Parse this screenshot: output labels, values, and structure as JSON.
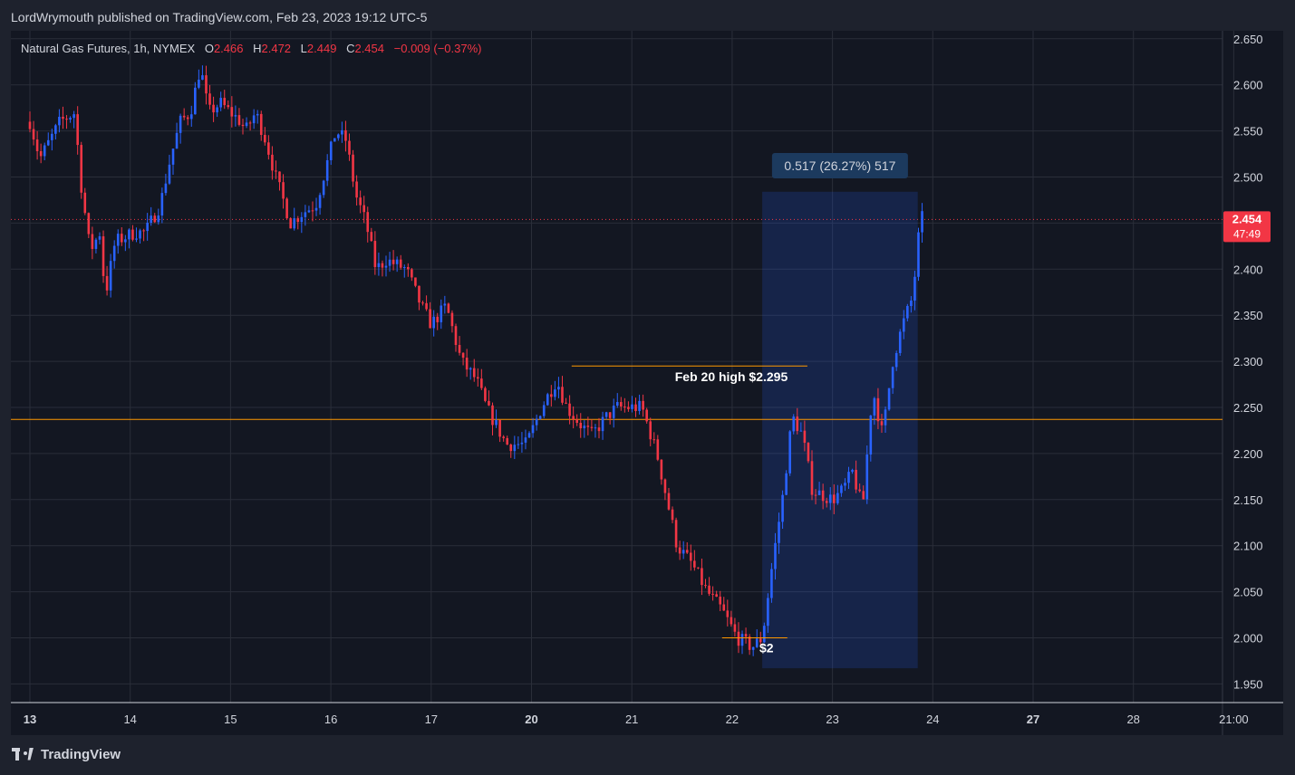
{
  "header": {
    "published": "LordWrymouth published on TradingView.com, Feb 23, 2023 19:12 UTC-5"
  },
  "legend": {
    "symbol": "Natural Gas Futures, 1h, NYMEX",
    "open_label": "O",
    "open": "2.466",
    "high_label": "H",
    "high": "2.472",
    "low_label": "L",
    "low": "2.449",
    "close_label": "C",
    "close": "2.454",
    "change": "−0.009 (−0.37%)"
  },
  "price_badge": {
    "price": "2.454",
    "countdown": "47:49"
  },
  "footer": {
    "brand": "TradingView"
  },
  "colors": {
    "up": "#2962ff",
    "down": "#f23645",
    "orange": "#ff9800",
    "background": "#131722"
  },
  "chart_data": {
    "type": "candlestick",
    "timeframe": "1h",
    "y_ticks": [
      "1.950",
      "2.000",
      "2.050",
      "2.100",
      "2.150",
      "2.200",
      "2.250",
      "2.300",
      "2.350",
      "2.400",
      "2.450",
      "2.500",
      "2.550",
      "2.600",
      "2.650"
    ],
    "ylim": [
      1.93,
      2.68
    ],
    "x_ticks": [
      {
        "label": "13",
        "bold": true,
        "pos": 0
      },
      {
        "label": "14",
        "bold": false,
        "pos": 1
      },
      {
        "label": "15",
        "bold": false,
        "pos": 2
      },
      {
        "label": "16",
        "bold": false,
        "pos": 3
      },
      {
        "label": "17",
        "bold": false,
        "pos": 4
      },
      {
        "label": "20",
        "bold": true,
        "pos": 5
      },
      {
        "label": "21",
        "bold": false,
        "pos": 6
      },
      {
        "label": "22",
        "bold": false,
        "pos": 7
      },
      {
        "label": "23",
        "bold": false,
        "pos": 8
      },
      {
        "label": "24",
        "bold": false,
        "pos": 9
      },
      {
        "label": "27",
        "bold": true,
        "pos": 10
      },
      {
        "label": "28",
        "bold": false,
        "pos": 11
      },
      {
        "label": "21:00",
        "bold": false,
        "pos": 12
      }
    ],
    "close_path": [
      [
        0,
        2.56
      ],
      [
        0.1,
        2.52
      ],
      [
        0.3,
        2.56
      ],
      [
        0.45,
        2.57
      ],
      [
        0.5,
        2.5
      ],
      [
        0.6,
        2.42
      ],
      [
        0.7,
        2.44
      ],
      [
        0.75,
        2.37
      ],
      [
        0.85,
        2.43
      ],
      [
        1.05,
        2.44
      ],
      [
        1.15,
        2.44
      ],
      [
        1.3,
        2.47
      ],
      [
        1.4,
        2.52
      ],
      [
        1.5,
        2.56
      ],
      [
        1.6,
        2.57
      ],
      [
        1.7,
        2.62
      ],
      [
        1.78,
        2.57
      ],
      [
        1.9,
        2.58
      ],
      [
        2.1,
        2.56
      ],
      [
        2.15,
        2.55
      ],
      [
        2.25,
        2.57
      ],
      [
        2.35,
        2.54
      ],
      [
        2.45,
        2.5
      ],
      [
        2.6,
        2.45
      ],
      [
        2.7,
        2.46
      ],
      [
        2.85,
        2.47
      ],
      [
        2.95,
        2.51
      ],
      [
        3.05,
        2.55
      ],
      [
        3.15,
        2.54
      ],
      [
        3.25,
        2.48
      ],
      [
        3.35,
        2.45
      ],
      [
        3.45,
        2.4
      ],
      [
        3.55,
        2.41
      ],
      [
        3.75,
        2.4
      ],
      [
        3.9,
        2.36
      ],
      [
        4.0,
        2.34
      ],
      [
        4.15,
        2.36
      ],
      [
        4.3,
        2.3
      ],
      [
        4.45,
        2.28
      ],
      [
        4.55,
        2.25
      ],
      [
        4.75,
        2.21
      ],
      [
        4.95,
        2.21
      ],
      [
        5.1,
        2.25
      ],
      [
        5.25,
        2.28
      ],
      [
        5.35,
        2.25
      ],
      [
        5.5,
        2.23
      ],
      [
        5.6,
        2.22
      ],
      [
        5.75,
        2.24
      ],
      [
        5.85,
        2.25
      ],
      [
        6.1,
        2.25
      ],
      [
        6.25,
        2.2
      ],
      [
        6.35,
        2.15
      ],
      [
        6.45,
        2.1
      ],
      [
        6.6,
        2.08
      ],
      [
        6.75,
        2.05
      ],
      [
        6.9,
        2.03
      ],
      [
        7.05,
        2.0
      ],
      [
        7.2,
        1.99
      ],
      [
        7.3,
        2.0
      ],
      [
        7.4,
        2.08
      ],
      [
        7.5,
        2.15
      ],
      [
        7.6,
        2.24
      ],
      [
        7.7,
        2.22
      ],
      [
        7.8,
        2.16
      ],
      [
        8.0,
        2.15
      ],
      [
        8.1,
        2.16
      ],
      [
        8.2,
        2.18
      ],
      [
        8.3,
        2.14
      ],
      [
        8.4,
        2.27
      ],
      [
        8.5,
        2.22
      ],
      [
        8.6,
        2.3
      ],
      [
        8.7,
        2.34
      ],
      [
        8.8,
        2.37
      ],
      [
        8.88,
        2.46
      ],
      [
        8.91,
        2.45
      ]
    ],
    "annotations": [
      {
        "type": "hline",
        "price": 2.237,
        "label": ""
      },
      {
        "type": "segment",
        "price": 2.295,
        "from": 5.4,
        "to": 7.75,
        "label": "Feb 20 high $2.295"
      },
      {
        "type": "segment",
        "price": 2.0,
        "from": 6.9,
        "to": 7.55,
        "label": "$2"
      },
      {
        "type": "range",
        "from": 7.3,
        "to": 8.85,
        "low": 1.967,
        "high": 2.484,
        "label": "0.517 (26.27%) 517"
      },
      {
        "type": "last_price",
        "price": 2.454
      }
    ]
  }
}
